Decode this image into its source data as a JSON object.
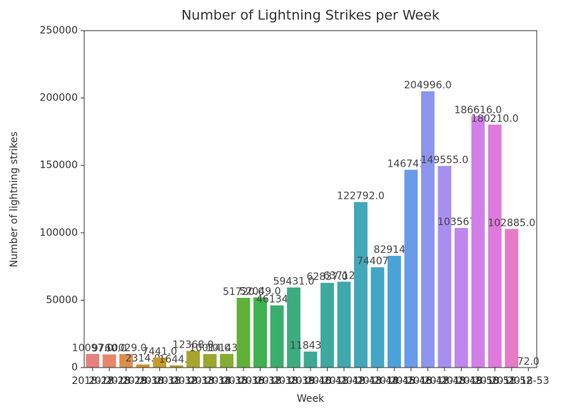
{
  "chart_data": {
    "type": "bar",
    "title": "Number of Lightning Strikes per Week",
    "x_label": "Week",
    "y_label": "Number of lightning strikes",
    "categories": [
      "2018-27",
      "2018-28",
      "2018-29",
      "2018-30",
      "2018-31",
      "2018-32",
      "2018-33",
      "2018-34",
      "2018-35",
      "2018-36",
      "2018-37",
      "2018-38",
      "2018-39",
      "2018-40",
      "2018-41",
      "2018-42",
      "2018-43",
      "2018-44",
      "2018-45",
      "2018-46",
      "2018-47",
      "2018-48",
      "2018-49",
      "2018-50",
      "2018-51",
      "2018-52",
      "2018-53"
    ],
    "values": [
      10097,
      9760,
      10029,
      2314,
      7441,
      1644,
      12368,
      10014,
      10143,
      51720,
      52049,
      46134,
      59431,
      11843,
      62837,
      63712,
      122792,
      74407,
      82914,
      146741,
      204996,
      149555,
      103567,
      186616,
      180210,
      102885,
      72
    ],
    "value_labels": [
      "10097.0",
      "9760.0",
      "10029.0",
      "2314.0",
      "7441.0",
      "1644.0",
      "12368.0",
      "10014.0",
      "10143.0",
      "51720.0",
      "52049.0",
      "46134.0",
      "59431.0",
      "11843.0",
      "62837.0",
      "63712.0",
      "122792.0",
      "74407.0",
      "82914.0",
      "146741.0",
      "204996.0",
      "149555.0",
      "103567.0",
      "186616.0",
      "180210.0",
      "102885.0",
      "72.0"
    ],
    "colors": [
      "#e8817e",
      "#e5876b",
      "#dd8d4e",
      "#d3912e",
      "#c79a2a",
      "#b99f2a",
      "#a9a42d",
      "#98a82f",
      "#84ac32",
      "#5fb138",
      "#3fb14f",
      "#3aae6c",
      "#3bac80",
      "#3caa90",
      "#3ea99e",
      "#3fa8ab",
      "#41a7b9",
      "#44a5c7",
      "#4ba2d8",
      "#6a9be8",
      "#8c95ee",
      "#a88ef0",
      "#bf86ee",
      "#d27ee9",
      "#e079dd",
      "#e67bc6",
      "#e87eb0"
    ],
    "ylim": [
      0,
      250000
    ],
    "yticks": [
      0,
      50000,
      100000,
      150000,
      200000,
      250000
    ]
  }
}
